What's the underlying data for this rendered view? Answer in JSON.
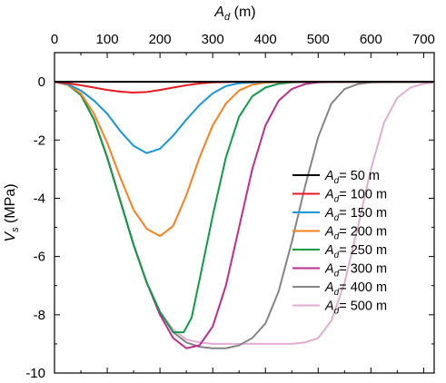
{
  "chart_data": {
    "type": "line",
    "xlabel": {
      "main": "A",
      "sub": "d",
      "unit": " (m)"
    },
    "ylabel": {
      "main": "V",
      "sub": "s",
      "unit": " (MPa)"
    },
    "xlim": [
      0,
      720
    ],
    "ylim": [
      -10,
      1
    ],
    "x_ticks": [
      0,
      100,
      200,
      300,
      400,
      500,
      600,
      700
    ],
    "y_ticks": [
      0,
      -2,
      -4,
      -6,
      -8,
      -10
    ],
    "x_axis_position": "top",
    "grid": false,
    "legend_position": "center-right",
    "series": [
      {
        "name_main": "A",
        "name_sub": "d",
        "name_rest": "= 50 m",
        "color": "#000000",
        "points": [
          [
            0,
            0
          ],
          [
            100,
            0
          ],
          [
            200,
            0
          ],
          [
            300,
            0
          ],
          [
            400,
            0
          ],
          [
            500,
            0
          ],
          [
            600,
            0
          ],
          [
            700,
            0
          ],
          [
            720,
            0
          ]
        ]
      },
      {
        "name_main": "A",
        "name_sub": "d",
        "name_rest": "= 100 m",
        "color": "#e8191e",
        "points": [
          [
            0,
            0
          ],
          [
            25,
            -0.05
          ],
          [
            50,
            -0.12
          ],
          [
            75,
            -0.2
          ],
          [
            100,
            -0.28
          ],
          [
            125,
            -0.34
          ],
          [
            150,
            -0.37
          ],
          [
            175,
            -0.35
          ],
          [
            200,
            -0.28
          ],
          [
            225,
            -0.2
          ],
          [
            250,
            -0.12
          ],
          [
            275,
            -0.06
          ],
          [
            300,
            -0.02
          ],
          [
            350,
            0
          ],
          [
            720,
            0
          ]
        ]
      },
      {
        "name_main": "A",
        "name_sub": "d",
        "name_rest": "= 150 m",
        "color": "#1897d4",
        "points": [
          [
            0,
            0
          ],
          [
            25,
            -0.08
          ],
          [
            50,
            -0.3
          ],
          [
            75,
            -0.65
          ],
          [
            100,
            -1.1
          ],
          [
            125,
            -1.7
          ],
          [
            150,
            -2.2
          ],
          [
            175,
            -2.45
          ],
          [
            200,
            -2.3
          ],
          [
            225,
            -1.85
          ],
          [
            250,
            -1.3
          ],
          [
            275,
            -0.8
          ],
          [
            300,
            -0.4
          ],
          [
            325,
            -0.15
          ],
          [
            350,
            -0.05
          ],
          [
            400,
            0
          ],
          [
            720,
            0
          ]
        ]
      },
      {
        "name_main": "A",
        "name_sub": "d",
        "name_rest": "= 200 m",
        "color": "#f58220",
        "points": [
          [
            0,
            0
          ],
          [
            25,
            -0.1
          ],
          [
            50,
            -0.4
          ],
          [
            75,
            -1.1
          ],
          [
            100,
            -2.1
          ],
          [
            125,
            -3.3
          ],
          [
            150,
            -4.4
          ],
          [
            175,
            -5.05
          ],
          [
            200,
            -5.3
          ],
          [
            225,
            -4.95
          ],
          [
            250,
            -3.9
          ],
          [
            275,
            -2.6
          ],
          [
            300,
            -1.5
          ],
          [
            325,
            -0.75
          ],
          [
            350,
            -0.3
          ],
          [
            375,
            -0.1
          ],
          [
            400,
            -0.03
          ],
          [
            450,
            0
          ],
          [
            720,
            0
          ]
        ]
      },
      {
        "name_main": "A",
        "name_sub": "d",
        "name_rest": "= 250 m",
        "color": "#109a47",
        "points": [
          [
            0,
            0
          ],
          [
            25,
            -0.1
          ],
          [
            50,
            -0.45
          ],
          [
            75,
            -1.3
          ],
          [
            100,
            -2.6
          ],
          [
            125,
            -4.1
          ],
          [
            150,
            -5.6
          ],
          [
            175,
            -6.9
          ],
          [
            200,
            -7.9
          ],
          [
            225,
            -8.6
          ],
          [
            245,
            -8.6
          ],
          [
            260,
            -8.1
          ],
          [
            275,
            -6.8
          ],
          [
            300,
            -4.6
          ],
          [
            325,
            -2.6
          ],
          [
            350,
            -1.2
          ],
          [
            375,
            -0.5
          ],
          [
            400,
            -0.2
          ],
          [
            425,
            -0.07
          ],
          [
            450,
            -0.02
          ],
          [
            500,
            0
          ],
          [
            720,
            0
          ]
        ]
      },
      {
        "name_main": "A",
        "name_sub": "d",
        "name_rest": "= 300 m",
        "color": "#b92f8f",
        "points": [
          [
            0,
            0
          ],
          [
            25,
            -0.1
          ],
          [
            50,
            -0.45
          ],
          [
            75,
            -1.3
          ],
          [
            100,
            -2.6
          ],
          [
            125,
            -4.1
          ],
          [
            150,
            -5.6
          ],
          [
            175,
            -6.9
          ],
          [
            200,
            -8.0
          ],
          [
            225,
            -8.8
          ],
          [
            250,
            -9.15
          ],
          [
            275,
            -9.05
          ],
          [
            300,
            -8.4
          ],
          [
            325,
            -7.0
          ],
          [
            350,
            -5.0
          ],
          [
            375,
            -3.0
          ],
          [
            400,
            -1.5
          ],
          [
            425,
            -0.65
          ],
          [
            450,
            -0.25
          ],
          [
            475,
            -0.08
          ],
          [
            500,
            -0.02
          ],
          [
            550,
            0
          ],
          [
            720,
            0
          ]
        ]
      },
      {
        "name_main": "A",
        "name_sub": "d",
        "name_rest": "= 400 m",
        "color": "#858585",
        "points": [
          [
            0,
            0
          ],
          [
            25,
            -0.1
          ],
          [
            50,
            -0.45
          ],
          [
            75,
            -1.3
          ],
          [
            100,
            -2.6
          ],
          [
            125,
            -4.1
          ],
          [
            150,
            -5.6
          ],
          [
            175,
            -6.9
          ],
          [
            200,
            -7.9
          ],
          [
            225,
            -8.6
          ],
          [
            250,
            -8.95
          ],
          [
            275,
            -9.1
          ],
          [
            300,
            -9.15
          ],
          [
            325,
            -9.15
          ],
          [
            350,
            -9.05
          ],
          [
            375,
            -8.8
          ],
          [
            400,
            -8.3
          ],
          [
            425,
            -7.2
          ],
          [
            450,
            -5.5
          ],
          [
            475,
            -3.6
          ],
          [
            500,
            -1.9
          ],
          [
            525,
            -0.75
          ],
          [
            550,
            -0.25
          ],
          [
            575,
            -0.08
          ],
          [
            600,
            -0.02
          ],
          [
            650,
            0
          ],
          [
            720,
            0
          ]
        ]
      },
      {
        "name_main": "A",
        "name_sub": "d",
        "name_rest": "= 500 m",
        "color": "#e0aed0",
        "points": [
          [
            0,
            0
          ],
          [
            25,
            -0.1
          ],
          [
            50,
            -0.45
          ],
          [
            75,
            -1.3
          ],
          [
            100,
            -2.6
          ],
          [
            125,
            -4.1
          ],
          [
            150,
            -5.6
          ],
          [
            175,
            -6.9
          ],
          [
            200,
            -7.9
          ],
          [
            225,
            -8.5
          ],
          [
            250,
            -8.85
          ],
          [
            275,
            -8.95
          ],
          [
            300,
            -9.0
          ],
          [
            350,
            -9.0
          ],
          [
            400,
            -9.0
          ],
          [
            450,
            -9.0
          ],
          [
            475,
            -8.95
          ],
          [
            500,
            -8.8
          ],
          [
            525,
            -8.2
          ],
          [
            550,
            -6.9
          ],
          [
            575,
            -5.0
          ],
          [
            600,
            -3.0
          ],
          [
            625,
            -1.4
          ],
          [
            650,
            -0.55
          ],
          [
            675,
            -0.2
          ],
          [
            700,
            -0.07
          ],
          [
            720,
            -0.02
          ]
        ]
      }
    ]
  }
}
